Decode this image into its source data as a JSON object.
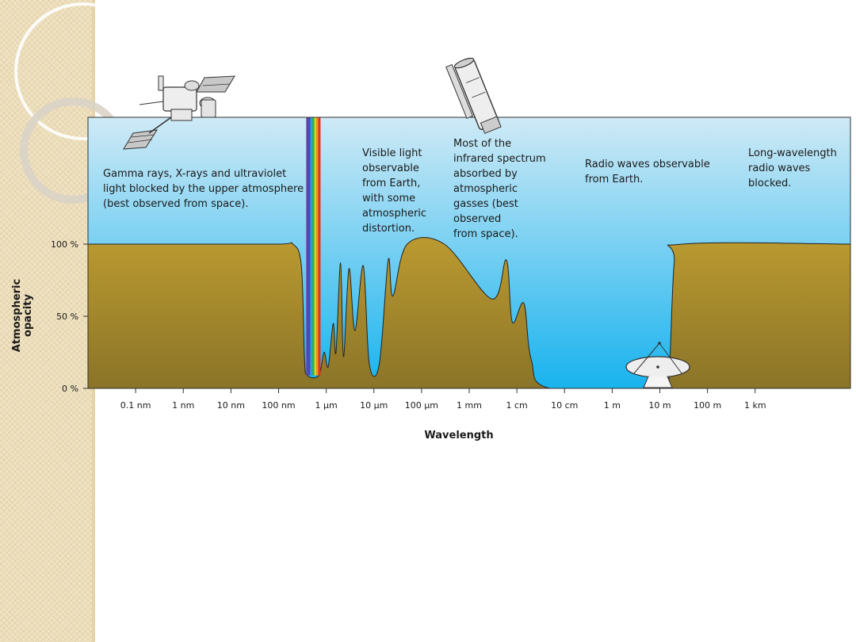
{
  "chart_data": {
    "type": "area",
    "title": "",
    "xlabel": "Wavelength",
    "ylabel": "Atmospheric opacity",
    "x_scale": "log",
    "xlim": [
      "0.01 nm",
      "100 km"
    ],
    "ylim": [
      0,
      100
    ],
    "y_ticks": [
      "0 %",
      "50 %",
      "100 %"
    ],
    "x_ticks": [
      "0.1 nm",
      "1 nm",
      "10 nm",
      "100 nm",
      "1 µm",
      "10 µm",
      "100 µm",
      "1 mm",
      "1 cm",
      "10 cm",
      "1 m",
      "10 m",
      "100 m",
      "1 km"
    ],
    "x_units": "meters",
    "series": [
      {
        "values": [
          {
            "x": 1e-11,
            "y": 100
          },
          {
            "x": 1e-09,
            "y": 100
          },
          {
            "x": 1e-07,
            "y": 100
          },
          {
            "x": 2e-07,
            "y": 100
          },
          {
            "x": 3e-07,
            "y": 85
          },
          {
            "x": 3.5e-07,
            "y": 20
          },
          {
            "x": 4e-07,
            "y": 9
          },
          {
            "x": 7e-07,
            "y": 9
          },
          {
            "x": 9e-07,
            "y": 25
          },
          {
            "x": 1.1e-06,
            "y": 15
          },
          {
            "x": 1.4e-06,
            "y": 45
          },
          {
            "x": 1.6e-06,
            "y": 25
          },
          {
            "x": 2e-06,
            "y": 87
          },
          {
            "x": 2.3e-06,
            "y": 22
          },
          {
            "x": 3e-06,
            "y": 83
          },
          {
            "x": 4e-06,
            "y": 40
          },
          {
            "x": 6e-06,
            "y": 85
          },
          {
            "x": 8e-06,
            "y": 17
          },
          {
            "x": 1.3e-05,
            "y": 17
          },
          {
            "x": 2e-05,
            "y": 89
          },
          {
            "x": 2.5e-05,
            "y": 64
          },
          {
            "x": 5e-05,
            "y": 100
          },
          {
            "x": 0.0003,
            "y": 100
          },
          {
            "x": 0.003,
            "y": 62
          },
          {
            "x": 0.006,
            "y": 89
          },
          {
            "x": 0.008,
            "y": 46
          },
          {
            "x": 0.014,
            "y": 59
          },
          {
            "x": 0.02,
            "y": 20
          },
          {
            "x": 0.05,
            "y": 0
          },
          {
            "x": 10,
            "y": 0
          },
          {
            "x": 15,
            "y": 0
          },
          {
            "x": 20,
            "y": 87
          },
          {
            "x": 30,
            "y": 100
          },
          {
            "x": 100000.0,
            "y": 100
          }
        ]
      }
    ],
    "annotations": [
      {
        "lines": [
          "Gamma rays, X-rays and ultraviolet",
          "light blocked by the upper atmosphere",
          "(best observed from space)."
        ]
      },
      {
        "lines": [
          "Visible light",
          "observable",
          "from Earth,",
          "with some",
          "atmospheric",
          "distortion."
        ]
      },
      {
        "lines": [
          "Most of the",
          "infrared spectrum",
          "absorbed by",
          "atmospheric",
          "gasses (best",
          "observed",
          "from space)."
        ]
      },
      {
        "lines": [
          "Radio waves observable",
          "from Earth."
        ]
      },
      {
        "lines": [
          "Long-wavelength",
          "radio waves",
          "blocked."
        ]
      }
    ],
    "colors": {
      "sky_top": "#cfeaf6",
      "sky_bottom": "#18b3ee",
      "ground_top": "#bb9a30",
      "ground_bottom": "#8a7428",
      "rainbow": [
        "#6a3fa0",
        "#3b4fc4",
        "#2f9be0",
        "#2fb04a",
        "#d9d12c",
        "#f08a22",
        "#e0331f"
      ]
    },
    "icons": [
      "satellite-icon",
      "space-telescope-icon",
      "radio-dish-icon"
    ]
  }
}
